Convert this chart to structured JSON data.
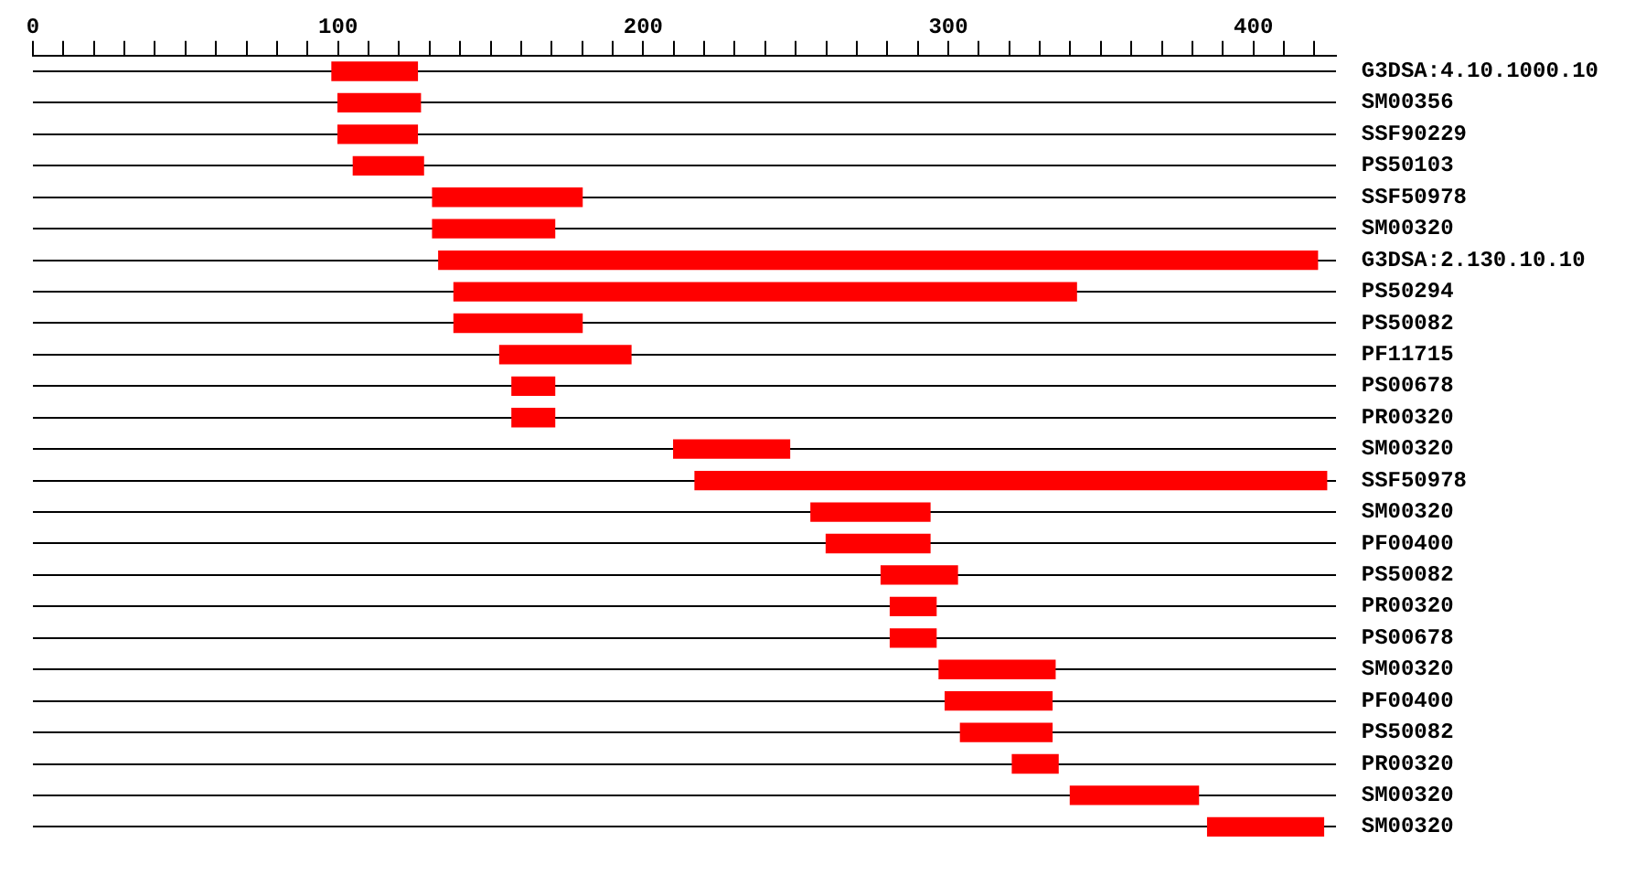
{
  "chart_data": {
    "type": "bar",
    "orientation": "horizontal",
    "grid": "y",
    "legend": false,
    "categories": [
      "G3DSA:4.10.1000.10",
      "SM00356",
      "SSF90229",
      "PS50103",
      "SSF50978",
      "SM00320",
      "G3DSA:2.130.10.10",
      "PS50294",
      "PS50082",
      "PF11715",
      "PS00678",
      "PR00320",
      "SM00320",
      "SSF50978",
      "SM00320",
      "PF00400",
      "PS50082",
      "PR00320",
      "PS00678",
      "SM00320",
      "PF00400",
      "PS50082",
      "PR00320",
      "SM00320",
      "SM00320"
    ],
    "series": [
      {
        "color": "#ff0000",
        "base": [
          98,
          100,
          100,
          105,
          131,
          131,
          133,
          138,
          138,
          153,
          157,
          157,
          210,
          217,
          255,
          260,
          278,
          281,
          281,
          297,
          299,
          304,
          321,
          340,
          385
        ],
        "values": [
          28,
          27,
          26,
          23,
          49,
          40,
          288,
          204,
          42,
          43,
          14,
          14,
          38,
          207,
          39,
          34,
          25,
          15,
          15,
          38,
          35,
          30,
          15,
          42,
          38
        ]
      }
    ],
    "xlim": [
      0,
      427
    ],
    "xticks": [
      0,
      {
        "value": 10,
        "label": null
      },
      {
        "value": 20,
        "label": null
      },
      {
        "value": 30,
        "label": null
      },
      {
        "value": 40,
        "label": null
      },
      {
        "value": 50,
        "label": null
      },
      {
        "value": 60,
        "label": null
      },
      {
        "value": 70,
        "label": null
      },
      {
        "value": 80,
        "label": null
      },
      {
        "value": 90,
        "label": null
      },
      100,
      {
        "value": 110,
        "label": null
      },
      {
        "value": 120,
        "label": null
      },
      {
        "value": 130,
        "label": null
      },
      {
        "value": 140,
        "label": null
      },
      {
        "value": 150,
        "label": null
      },
      {
        "value": 160,
        "label": null
      },
      {
        "value": 170,
        "label": null
      },
      {
        "value": 180,
        "label": null
      },
      {
        "value": 190,
        "label": null
      },
      200,
      {
        "value": 210,
        "label": null
      },
      {
        "value": 220,
        "label": null
      },
      {
        "value": 230,
        "label": null
      },
      {
        "value": 240,
        "label": null
      },
      {
        "value": 250,
        "label": null
      },
      {
        "value": 260,
        "label": null
      },
      {
        "value": 270,
        "label": null
      },
      {
        "value": 280,
        "label": null
      },
      {
        "value": 290,
        "label": null
      },
      300,
      {
        "value": 310,
        "label": null
      },
      {
        "value": 320,
        "label": null
      },
      {
        "value": 330,
        "label": null
      },
      {
        "value": 340,
        "label": null
      },
      {
        "value": 350,
        "label": null
      },
      {
        "value": 360,
        "label": null
      },
      {
        "value": 370,
        "label": null
      },
      {
        "value": 380,
        "label": null
      },
      {
        "value": 390,
        "label": null
      },
      400,
      {
        "value": 410,
        "label": null
      },
      {
        "value": 420,
        "label": null
      }
    ]
  }
}
